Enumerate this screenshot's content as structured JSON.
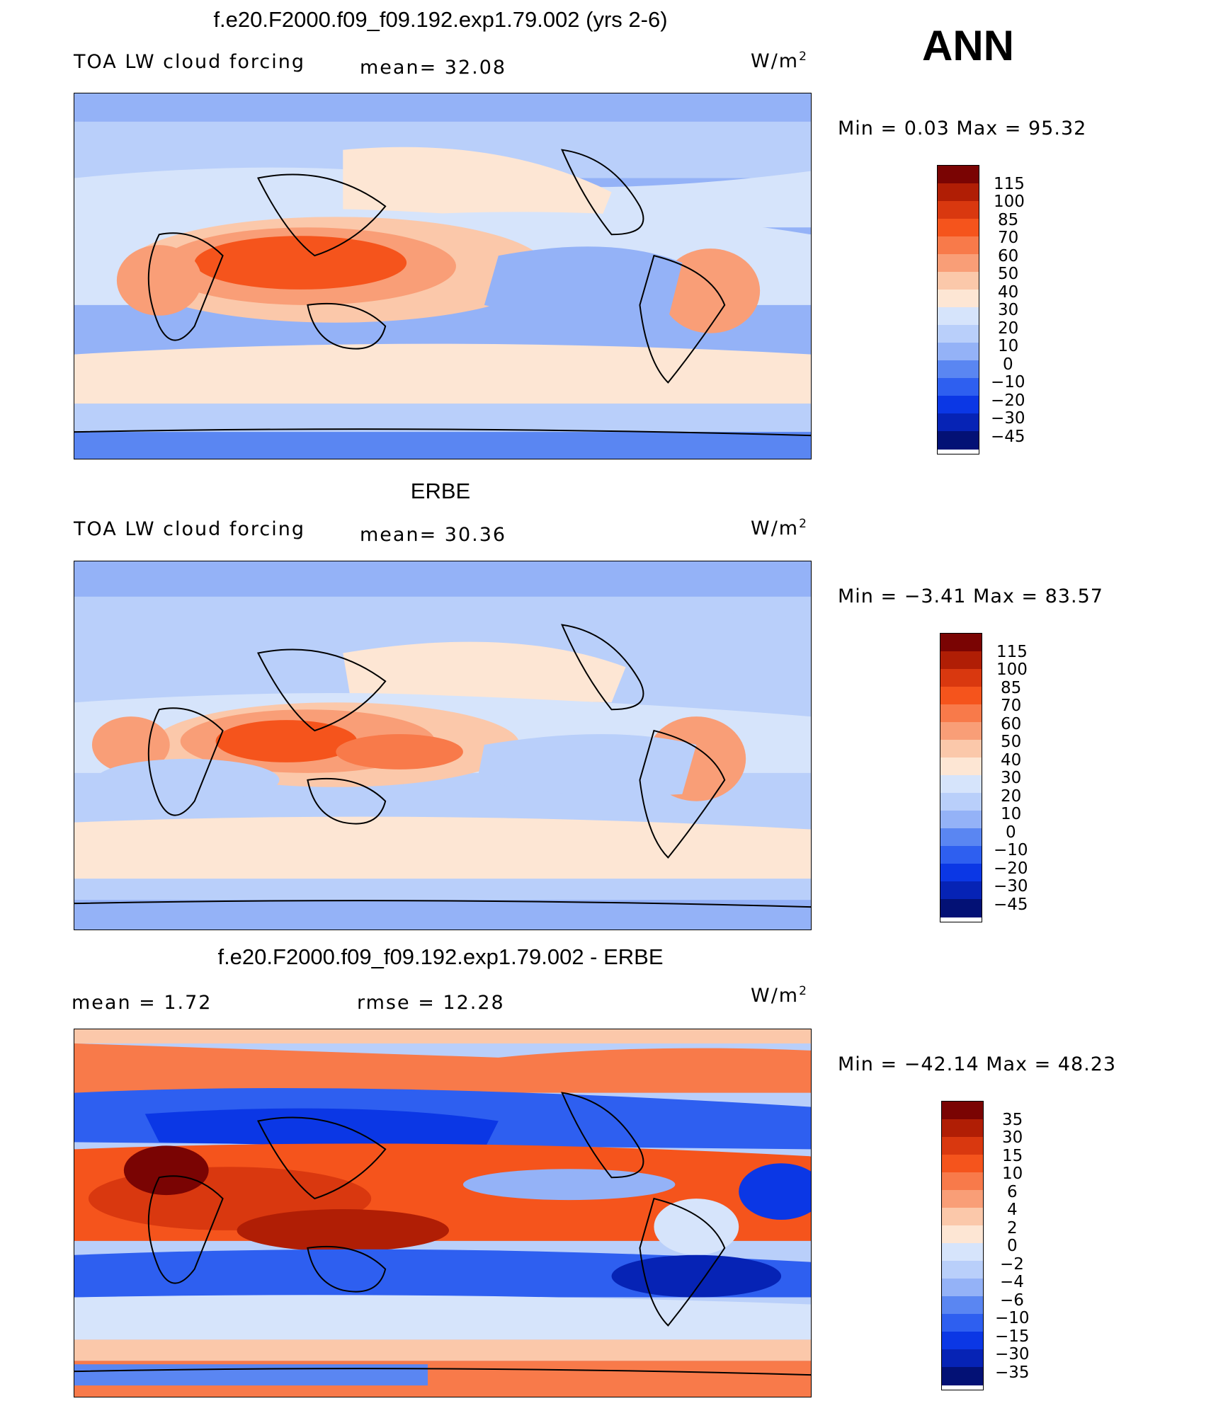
{
  "header": {
    "ann": "ANN"
  },
  "panels": [
    {
      "title": "f.e20.F2000.f09_f09.192.exp1.79.002 (yrs 2-6)",
      "left_label": "TOA LW cloud forcing",
      "mid_label": "mean=  32.08",
      "units": "W/m",
      "units_sup": "2",
      "minmax": "Min =    0.03  Max =   95.32",
      "colorbar_labels": [
        "115",
        "100",
        "85",
        "70",
        "60",
        "50",
        "40",
        "30",
        "20",
        "10",
        "0",
        "−10",
        "−20",
        "−30",
        "−45"
      ]
    },
    {
      "title": "ERBE",
      "left_label": "TOA LW cloud forcing",
      "mid_label": "mean=  30.36",
      "units": "W/m",
      "units_sup": "2",
      "minmax": "Min =   −3.41  Max =   83.57",
      "colorbar_labels": [
        "115",
        "100",
        "85",
        "70",
        "60",
        "50",
        "40",
        "30",
        "20",
        "10",
        "0",
        "−10",
        "−20",
        "−30",
        "−45"
      ]
    },
    {
      "title": "f.e20.F2000.f09_f09.192.exp1.79.002 - ERBE",
      "left_label": "mean =     1.72",
      "mid_label": "rmse =    12.28",
      "units": "W/m",
      "units_sup": "2",
      "minmax": "Min = −42.14  Max =   48.23",
      "colorbar_labels": [
        "35",
        "30",
        "15",
        "10",
        "6",
        "4",
        "2",
        "0",
        "−2",
        "−4",
        "−6",
        "−10",
        "−15",
        "−30",
        "−35"
      ]
    }
  ],
  "colors": {
    "scale": [
      "#7a0403",
      "#b01e05",
      "#d9380f",
      "#f5541c",
      "#f87a4a",
      "#f99e77",
      "#fbc8aa",
      "#fde6d4",
      "#d6e4fb",
      "#b9cffa",
      "#94b2f7",
      "#5a86f2",
      "#2e5ff0",
      "#0b37e5",
      "#0623b5",
      "#031175"
    ],
    "land_line": "#000000"
  }
}
